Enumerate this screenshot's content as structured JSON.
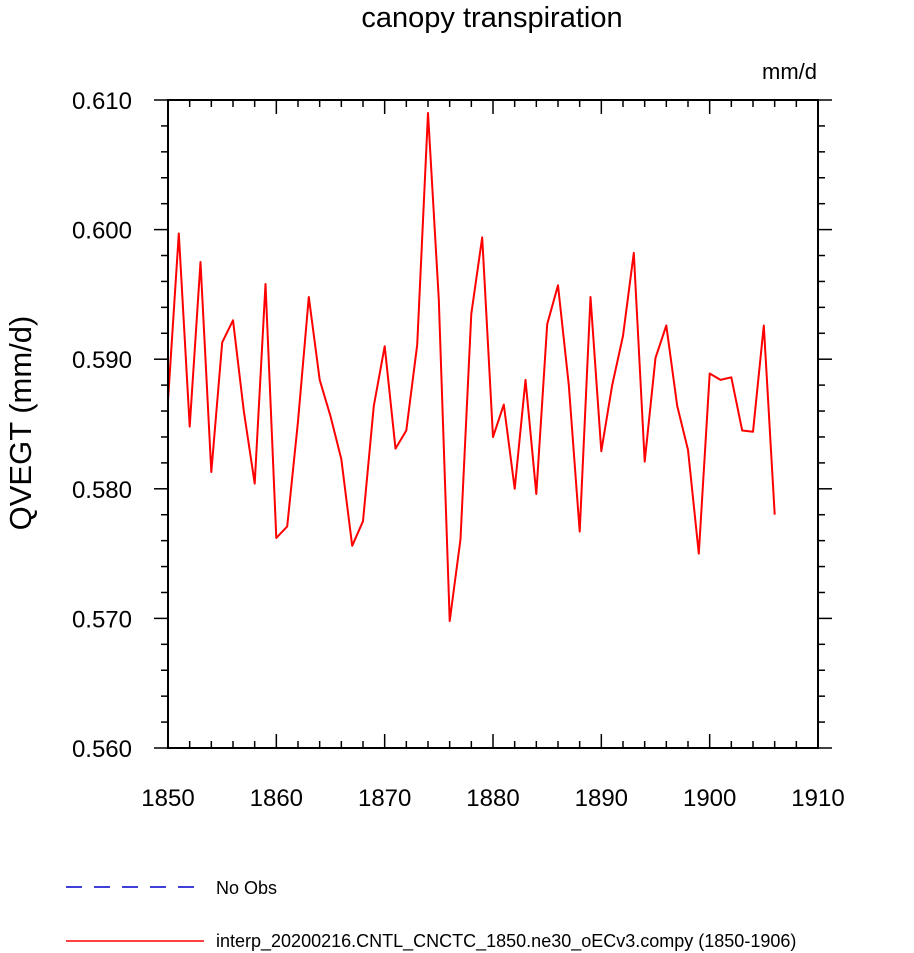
{
  "chart_data": {
    "type": "line",
    "title": "canopy transpiration",
    "units_label": "mm/d",
    "ylabel": "QVEGT  (mm/d)",
    "xlabel": "",
    "xlim": [
      1850,
      1910
    ],
    "ylim": [
      0.56,
      0.61
    ],
    "x_ticks": [
      1850,
      1860,
      1870,
      1880,
      1890,
      1900,
      1910
    ],
    "x_tick_labels": [
      "1850",
      "1860",
      "1870",
      "1880",
      "1890",
      "1900",
      "1910"
    ],
    "y_ticks": [
      0.56,
      0.57,
      0.58,
      0.59,
      0.6,
      0.61
    ],
    "y_tick_labels": [
      "0.560",
      "0.570",
      "0.580",
      "0.590",
      "0.600",
      "0.610"
    ],
    "x_minor_step": 2,
    "y_minor_step": 0.002,
    "grid": false,
    "legend_placement": "bottom-left, below plot",
    "series": [
      {
        "name": "interp_20200216.CNTL_CNCTC_1850.ne30_oECv3.compy (1850-1906)",
        "color": "#ff0000",
        "dash": "solid",
        "x": [
          1850,
          1851,
          1852,
          1853,
          1854,
          1855,
          1856,
          1857,
          1858,
          1859,
          1860,
          1861,
          1862,
          1863,
          1864,
          1865,
          1866,
          1867,
          1868,
          1869,
          1870,
          1871,
          1872,
          1873,
          1874,
          1875,
          1876,
          1877,
          1878,
          1879,
          1880,
          1881,
          1882,
          1883,
          1884,
          1885,
          1886,
          1887,
          1888,
          1889,
          1890,
          1891,
          1892,
          1893,
          1894,
          1895,
          1896,
          1897,
          1898,
          1899,
          1900,
          1901,
          1902,
          1903,
          1904,
          1905,
          1906
        ],
        "values": [
          0.5868,
          0.5997,
          0.5848,
          0.5975,
          0.5813,
          0.5913,
          0.593,
          0.586,
          0.5804,
          0.5958,
          0.5762,
          0.5771,
          0.5852,
          0.5948,
          0.5884,
          0.5856,
          0.5823,
          0.5756,
          0.5775,
          0.5864,
          0.591,
          0.5831,
          0.5845,
          0.5911,
          0.609,
          0.5946,
          0.5698,
          0.5761,
          0.5935,
          0.5994,
          0.584,
          0.5865,
          0.58,
          0.5884,
          0.5796,
          0.5927,
          0.5957,
          0.588,
          0.5767,
          0.5948,
          0.5829,
          0.588,
          0.5918,
          0.5982,
          0.5821,
          0.5901,
          0.5926,
          0.5864,
          0.583,
          0.575,
          0.5889,
          0.5884,
          0.5886,
          0.5845,
          0.5844,
          0.5926,
          0.578
        ]
      },
      {
        "name": "No Obs",
        "color": "#0000cc",
        "dash": "dashed",
        "x": [],
        "values": []
      }
    ]
  }
}
